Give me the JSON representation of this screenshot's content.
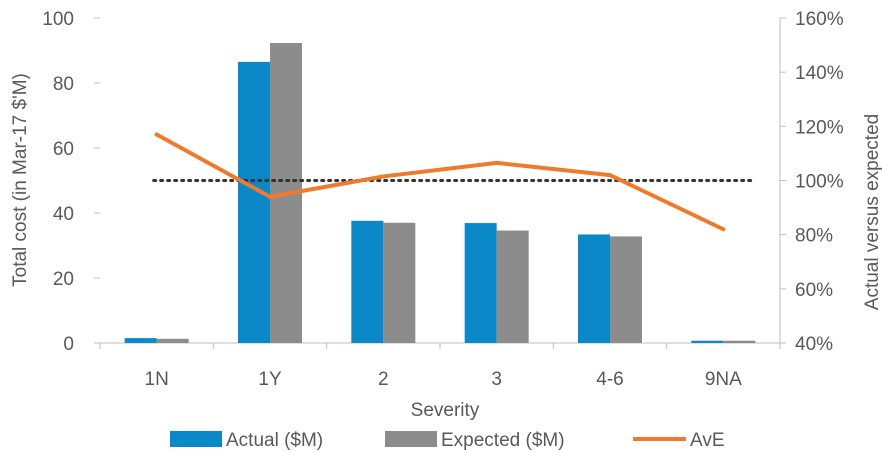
{
  "chart_data": {
    "type": "bar",
    "categories": [
      "1N",
      "1Y",
      "2",
      "3",
      "4-6",
      "9NA"
    ],
    "series": [
      {
        "name": "Actual ($M)",
        "type": "bar",
        "axis": "left",
        "color": "#0a88c8",
        "values": [
          1.5,
          86.5,
          37.6,
          36.9,
          33.4,
          0.7
        ]
      },
      {
        "name": "Expected ($M)",
        "type": "bar",
        "axis": "left",
        "color": "#8c8c8c",
        "values": [
          1.3,
          92.3,
          37.0,
          34.6,
          32.8,
          0.7
        ]
      },
      {
        "name": "AvE",
        "type": "line",
        "axis": "right",
        "color": "#ef7a2b",
        "values": [
          1.17,
          0.94,
          1.015,
          1.065,
          1.02,
          0.82
        ]
      }
    ],
    "reference_line": {
      "axis": "right",
      "value": 1.0,
      "style": "dotted",
      "color": "#333333"
    },
    "xlabel": "Severity",
    "ylabel": "Total cost (in Mar-17 $'M)",
    "y2label": "Actual versus expected",
    "ylim": [
      0,
      100
    ],
    "yticks": [
      "0",
      "20",
      "40",
      "60",
      "80",
      "100"
    ],
    "y2lim": [
      0.4,
      1.6
    ],
    "y2ticks": [
      "40%",
      "60%",
      "80%",
      "100%",
      "120%",
      "140%",
      "160%"
    ],
    "grid": false,
    "legend_position": "bottom"
  }
}
